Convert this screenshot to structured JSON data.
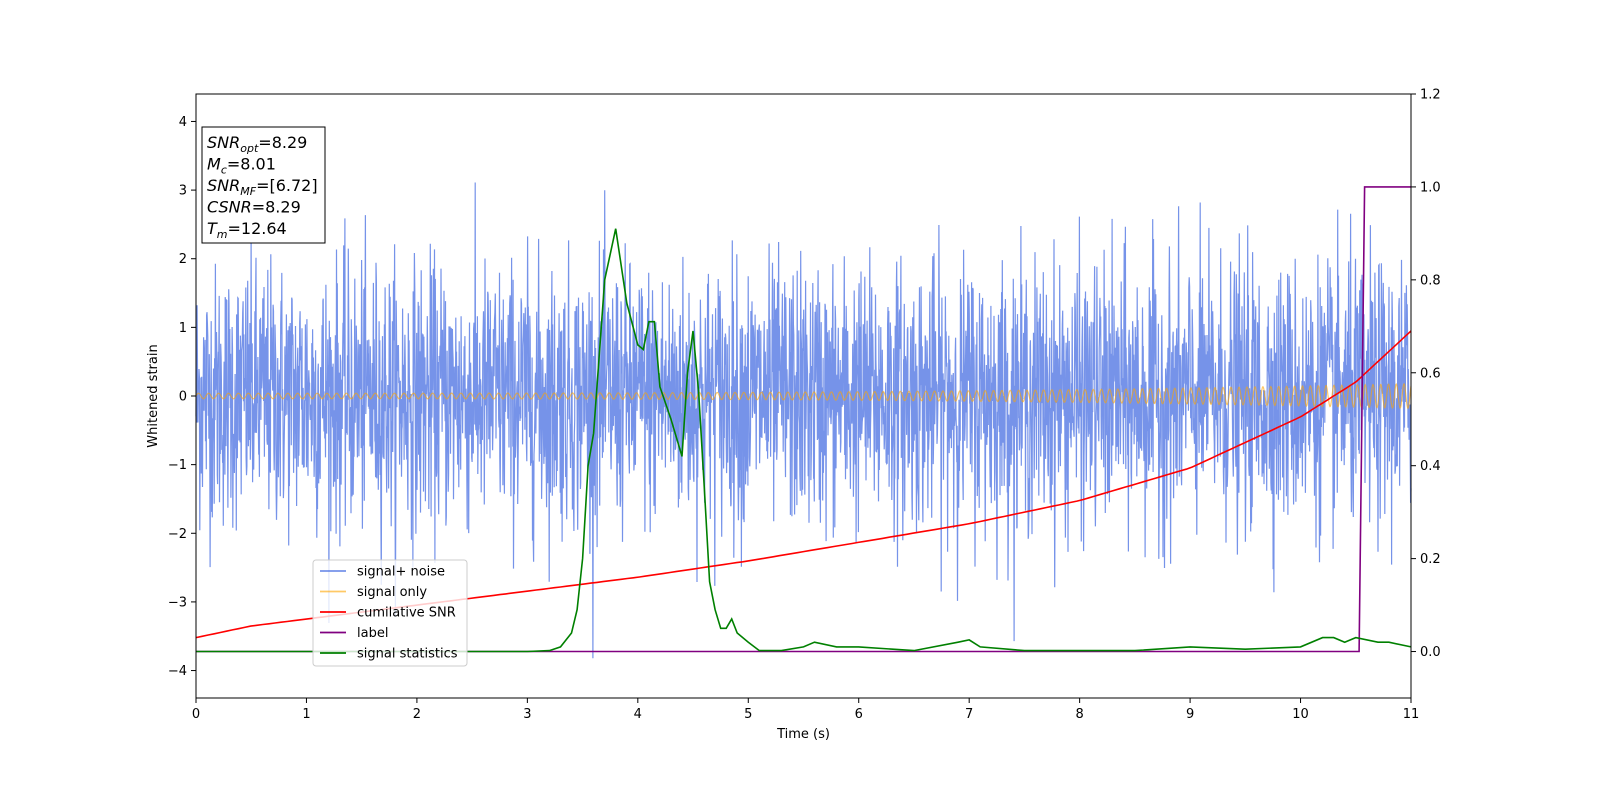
{
  "chart_data": {
    "type": "line",
    "title": "",
    "xlabel": "Time (s)",
    "ylabel": "Whitened strain",
    "xlim": [
      0,
      11
    ],
    "ylim": [
      -4.4,
      4.4
    ],
    "y2lim": [
      -0.1,
      1.2
    ],
    "xticks": [
      0,
      1,
      2,
      3,
      4,
      5,
      6,
      7,
      8,
      9,
      10,
      11
    ],
    "yticks": [
      -4,
      -3,
      -2,
      -1,
      0,
      1,
      2,
      3,
      4
    ],
    "y2ticks": [
      "0.0",
      "0.2",
      "0.4",
      "0.6",
      "0.8",
      "1.0",
      "1.2"
    ],
    "grid": false,
    "legend_position": "lower-left",
    "info_box": [
      {
        "var": "SNR",
        "sub": "opt",
        "value": "=8.29"
      },
      {
        "var": "M",
        "sub": "c",
        "value": "=8.01"
      },
      {
        "var": "SNR",
        "sub": "MF",
        "value": "=[6.72]"
      },
      {
        "var": "CSNR",
        "sub": "",
        "value": "=8.29"
      },
      {
        "var": "T",
        "sub": "m",
        "value": "=12.64"
      }
    ],
    "series": [
      {
        "name": "signal+ noise",
        "color": "#4169e1",
        "axis": "left",
        "kind": "noise",
        "description_values": {
          "std": 0.95,
          "t_range": [
            0,
            11
          ]
        }
      },
      {
        "name": "signal only",
        "color": "#ffa500",
        "axis": "left",
        "kind": "chirp",
        "amplitude_start": 0.04,
        "amplitude_end": 0.18
      },
      {
        "name": "cumilative SNR",
        "color": "#ff0000",
        "axis": "right",
        "x": [
          0,
          0.5,
          1,
          2,
          3,
          4,
          5,
          6,
          7,
          8,
          9,
          10,
          10.5,
          11
        ],
        "values": [
          0.03,
          0.055,
          0.07,
          0.1,
          0.13,
          0.16,
          0.195,
          0.235,
          0.275,
          0.325,
          0.395,
          0.505,
          0.58,
          0.69
        ]
      },
      {
        "name": "label",
        "color": "#800080",
        "axis": "right",
        "x": [
          0,
          10.53,
          10.58,
          11
        ],
        "values": [
          0.0,
          0.0,
          1.0,
          1.0
        ]
      },
      {
        "name": "signal statistics",
        "color": "#008000",
        "axis": "right",
        "x": [
          0,
          1,
          2,
          3,
          3.2,
          3.3,
          3.4,
          3.45,
          3.5,
          3.55,
          3.6,
          3.7,
          3.8,
          3.9,
          4.0,
          4.05,
          4.1,
          4.15,
          4.2,
          4.3,
          4.4,
          4.45,
          4.5,
          4.55,
          4.6,
          4.65,
          4.7,
          4.75,
          4.8,
          4.85,
          4.9,
          5.0,
          5.1,
          5.3,
          5.5,
          5.6,
          5.8,
          6.0,
          6.5,
          6.9,
          7.0,
          7.1,
          7.5,
          8.0,
          8.5,
          9.0,
          9.5,
          10.0,
          10.2,
          10.3,
          10.4,
          10.5,
          10.7,
          10.8,
          11.0
        ],
        "values": [
          0.0,
          0.0,
          0.0,
          0.0,
          0.002,
          0.01,
          0.04,
          0.09,
          0.2,
          0.4,
          0.47,
          0.8,
          0.91,
          0.75,
          0.66,
          0.65,
          0.71,
          0.71,
          0.57,
          0.5,
          0.42,
          0.6,
          0.69,
          0.56,
          0.36,
          0.15,
          0.09,
          0.05,
          0.05,
          0.07,
          0.04,
          0.02,
          0.002,
          0.002,
          0.01,
          0.02,
          0.01,
          0.01,
          0.002,
          0.02,
          0.025,
          0.01,
          0.002,
          0.002,
          0.002,
          0.01,
          0.005,
          0.01,
          0.03,
          0.03,
          0.02,
          0.03,
          0.02,
          0.02,
          0.01
        ]
      }
    ]
  }
}
